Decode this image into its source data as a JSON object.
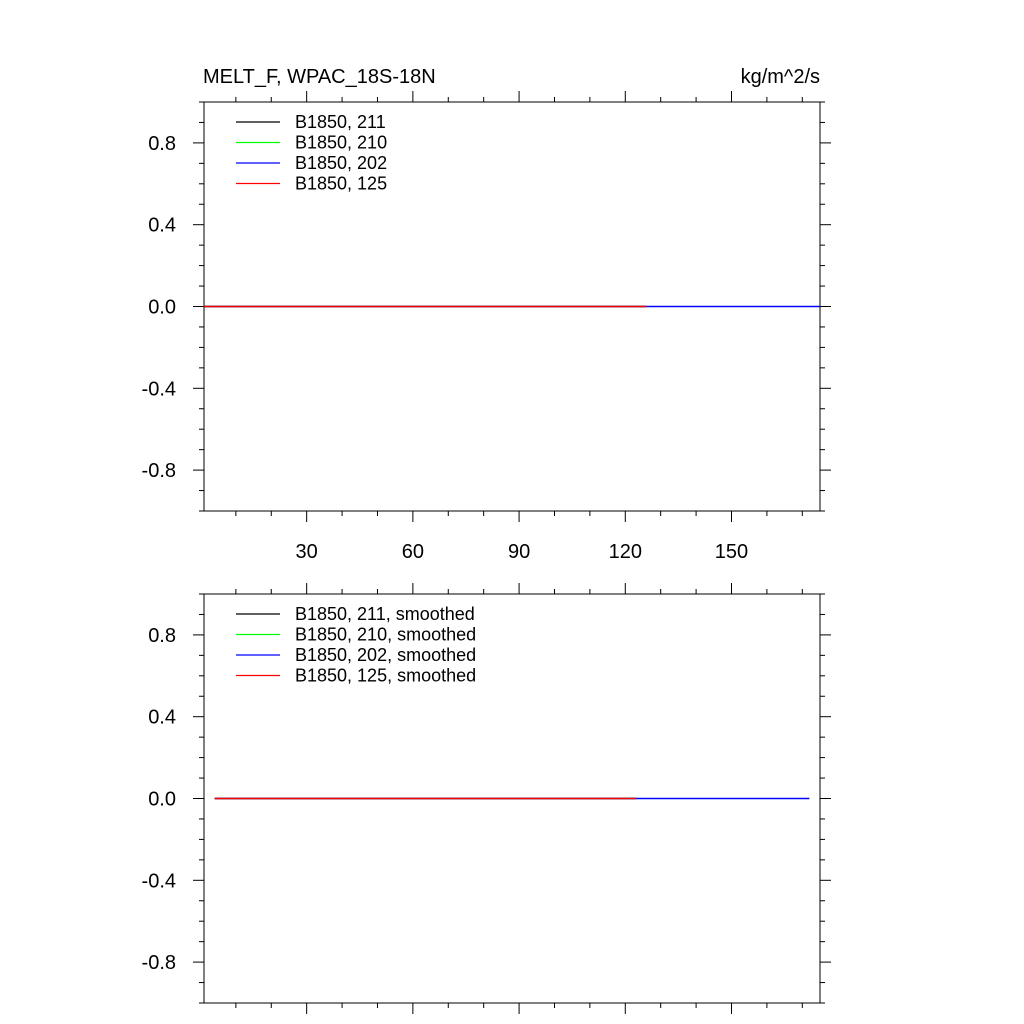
{
  "figure": {
    "title_left": "MELT_F, WPAC_18S-18N",
    "title_right": "kg/m^2/s"
  },
  "chart_data": [
    {
      "type": "line",
      "grid": false,
      "legend_position": "top-left",
      "xlim": [
        1,
        175
      ],
      "ylim": [
        -1,
        1
      ],
      "xticks": [
        30,
        60,
        90,
        120,
        150
      ],
      "xtick_labels": [
        "30",
        "60",
        "90",
        "120",
        "150"
      ],
      "yticks": [
        0.8,
        0.4,
        0.0,
        -0.4,
        -0.8
      ],
      "ytick_labels": [
        "0.8",
        "0.4",
        "0.0",
        "-0.4",
        "-0.8"
      ],
      "series": [
        {
          "name": "B1850, 211",
          "color": "#000000",
          "x": [
            1,
            126
          ],
          "y": [
            0,
            0
          ]
        },
        {
          "name": "B1850, 210",
          "color": "#00ff00",
          "x": [
            1,
            126
          ],
          "y": [
            0,
            0
          ]
        },
        {
          "name": "B1850, 202",
          "color": "#0000ff",
          "x": [
            1,
            175
          ],
          "y": [
            0,
            0
          ]
        },
        {
          "name": "B1850, 125",
          "color": "#ff0000",
          "x": [
            1,
            126
          ],
          "y": [
            0,
            0
          ]
        }
      ]
    },
    {
      "type": "line",
      "grid": false,
      "legend_position": "top-left",
      "xlim": [
        1,
        175
      ],
      "ylim": [
        -1,
        1
      ],
      "xticks": [
        30,
        60,
        90,
        120,
        150
      ],
      "xtick_labels": [],
      "yticks": [
        0.8,
        0.4,
        0.0,
        -0.4,
        -0.8
      ],
      "ytick_labels": [
        "0.8",
        "0.4",
        "0.0",
        "-0.4",
        "-0.8"
      ],
      "series": [
        {
          "name": "B1850, 211, smoothed",
          "color": "#000000",
          "x": [
            4,
            123
          ],
          "y": [
            0,
            0
          ]
        },
        {
          "name": "B1850, 210, smoothed",
          "color": "#00ff00",
          "x": [
            4,
            123
          ],
          "y": [
            0,
            0
          ]
        },
        {
          "name": "B1850, 202, smoothed",
          "color": "#0000ff",
          "x": [
            4,
            172
          ],
          "y": [
            0,
            0
          ]
        },
        {
          "name": "B1850, 125, smoothed",
          "color": "#ff0000",
          "x": [
            4,
            123
          ],
          "y": [
            0,
            0
          ]
        }
      ]
    }
  ]
}
